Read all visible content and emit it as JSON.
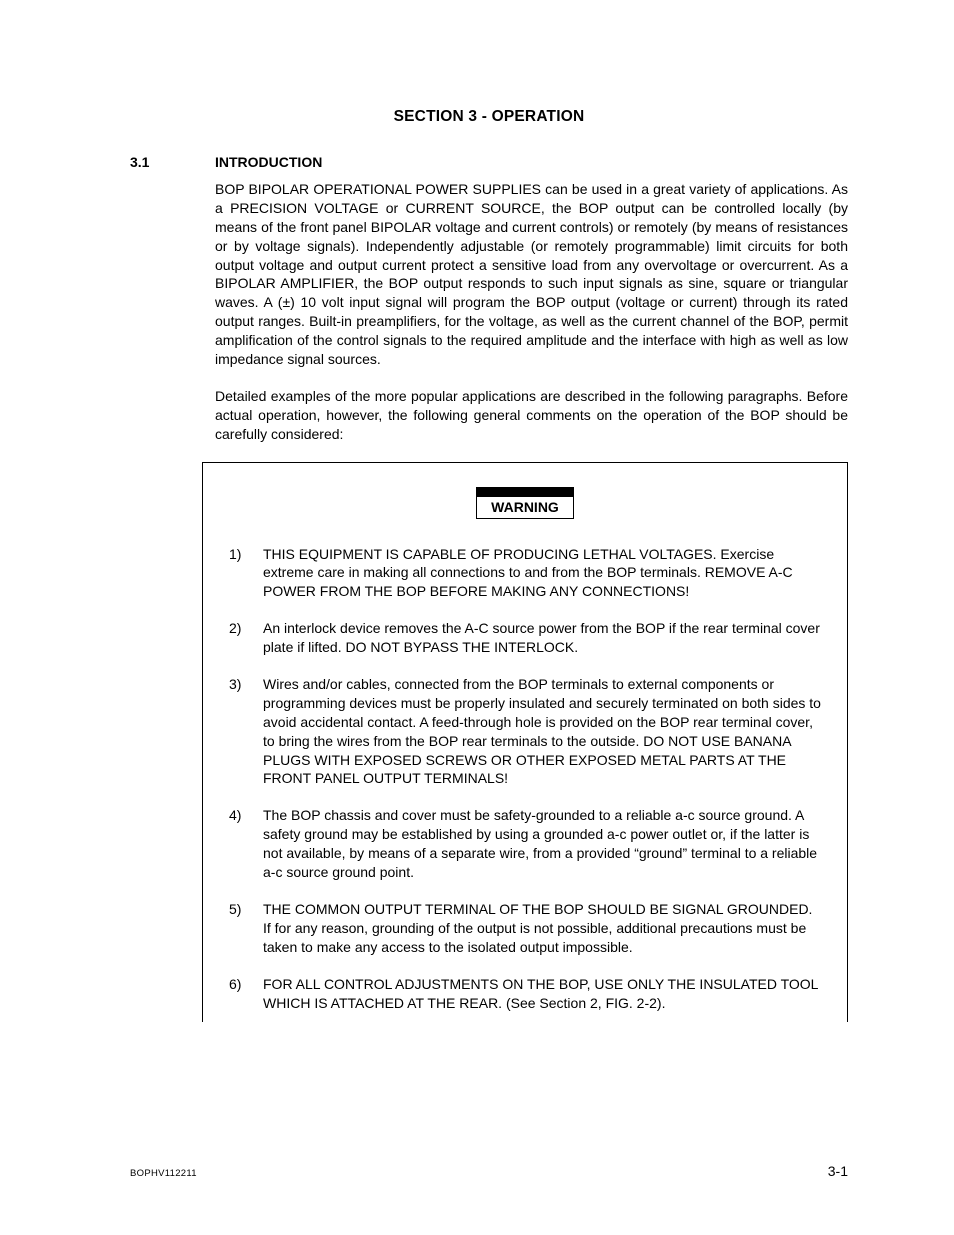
{
  "section_title": "SECTION 3 - OPERATION",
  "heading": {
    "number": "3.1",
    "text": "INTRODUCTION"
  },
  "paragraphs": [
    "BOP BIPOLAR OPERATIONAL POWER SUPPLIES can be used in a great variety of applications. As a PRECISION VOLTAGE or CURRENT SOURCE, the BOP output can be controlled locally (by means of the front panel BIPOLAR voltage and current controls) or remotely (by means of resistances or by voltage signals). Independently adjustable (or remotely programmable) limit circuits for both output voltage and output current protect a sensitive load from any overvoltage or overcurrent. As a BIPOLAR AMPLIFIER, the BOP output responds to such input signals as sine, square or triangular waves. A (±) 10 volt input signal will program the BOP output (voltage or current) through its rated output ranges. Built-in preamplifiers, for the voltage, as well as the current channel of the BOP, permit amplification of the control signals to the required amplitude and the interface with high as well as low impedance signal sources.",
    "Detailed examples of the more popular applications are described in the following paragraphs. Before actual operation, however, the following general comments on the operation of the BOP should be carefully considered:"
  ],
  "warning_label": "WARNING",
  "warnings": [
    {
      "n": "1)",
      "t": "THIS EQUIPMENT IS CAPABLE OF PRODUCING LETHAL VOLTAGES. Exercise extreme care in making all connections to and from the BOP terminals. REMOVE A-C POWER FROM THE BOP BEFORE MAKING ANY CONNECTIONS!"
    },
    {
      "n": "2)",
      "t": "An interlock device removes the A-C source power from the BOP if the rear terminal cover plate if lifted. DO NOT BYPASS THE INTERLOCK."
    },
    {
      "n": "3)",
      "t": "Wires and/or cables, connected from the BOP terminals to external components or programming devices must be properly insulated and securely terminated on both sides to avoid accidental contact. A feed-through hole is provided on the BOP rear terminal cover, to bring the wires from the BOP rear terminals to the outside. DO NOT USE BANANA PLUGS WITH EXPOSED SCREWS OR OTHER EXPOSED METAL PARTS AT THE FRONT PANEL OUTPUT TERMINALS!"
    },
    {
      "n": "4)",
      "t": "The BOP chassis and cover must be safety-grounded to a reliable a-c source ground. A safety ground may be established by using a grounded a-c power outlet or, if the latter is not available, by means of a separate wire, from a provided “ground” terminal to a reliable a-c source ground point."
    },
    {
      "n": "5)",
      "t": "THE COMMON OUTPUT TERMINAL OF THE BOP SHOULD BE SIGNAL GROUNDED. If for any reason, grounding of the output is not possible, additional precautions must be taken to make any access to the isolated output impossible."
    },
    {
      "n": "6)",
      "t": "FOR ALL CONTROL ADJUSTMENTS ON THE BOP, USE ONLY THE INSULATED TOOL WHICH IS ATTACHED AT THE REAR. (See Section 2, FIG. 2-2)."
    }
  ],
  "footer": {
    "left": "BOPHV112211",
    "right": "3-1"
  },
  "colors": {
    "text": "#000000",
    "background": "#ffffff",
    "border": "#000000"
  }
}
